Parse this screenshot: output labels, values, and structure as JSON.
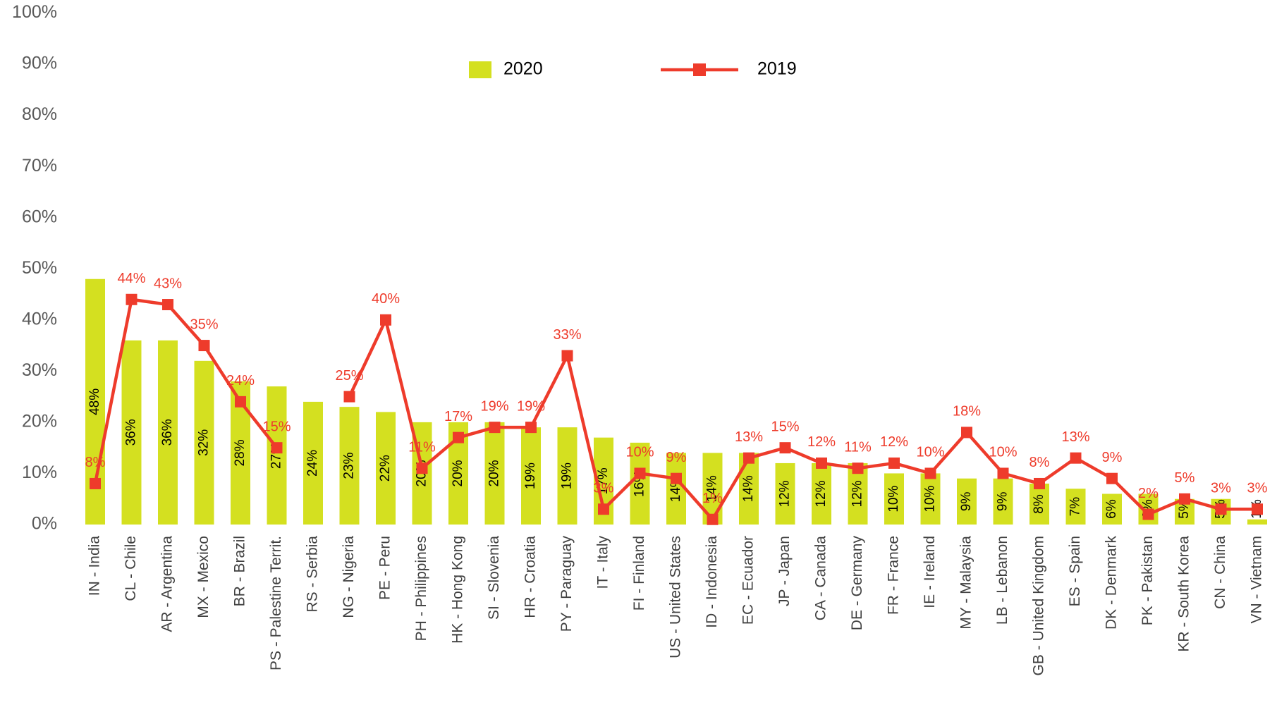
{
  "chart_data": {
    "type": "bar_line",
    "categories": [
      "IN - India",
      "CL - Chile",
      "AR - Argentina",
      "MX - Mexico",
      "BR - Brazil",
      "PS - Palestine Territ.",
      "RS - Serbia",
      "NG - Nigeria",
      "PE - Peru",
      "PH - Philippines",
      "HK - Hong Kong",
      "SI - Slovenia",
      "HR - Croatia",
      "PY - Paraguay",
      "IT - Italy",
      "FI - Finland",
      "US - United States",
      "ID - Indonesia",
      "EC - Ecuador",
      "JP - Japan",
      "CA - Canada",
      "DE - Germany",
      "FR - France",
      "IE - Ireland",
      "MY - Malaysia",
      "LB - Lebanon",
      "GB - United Kingdom",
      "ES - Spain",
      "DK - Denmark",
      "PK - Pakistan",
      "KR - South Korea",
      "CN - China",
      "VN - Vietnam"
    ],
    "series": [
      {
        "name": "2020",
        "type": "bar",
        "color": "#d4e020",
        "values": [
          48,
          36,
          36,
          32,
          28,
          27,
          24,
          23,
          22,
          20,
          20,
          20,
          19,
          19,
          17,
          16,
          14,
          14,
          14,
          12,
          12,
          12,
          10,
          10,
          9,
          9,
          8,
          7,
          6,
          6,
          5,
          5,
          1
        ],
        "value_labels": [
          "48%",
          "36%",
          "36%",
          "32%",
          "28%",
          "27%",
          "24%",
          "23%",
          "22%",
          "20%",
          "20%",
          "20%",
          "19%",
          "19%",
          "17%",
          "16%",
          "14%",
          "14%",
          "14%",
          "12%",
          "12%",
          "12%",
          "10%",
          "10%",
          "9%",
          "9%",
          "8%",
          "7%",
          "6%",
          "6%",
          "5%",
          "5%",
          "1%"
        ]
      },
      {
        "name": "2019",
        "type": "line",
        "color": "#ee3b2b",
        "values": [
          8,
          44,
          43,
          35,
          24,
          15,
          null,
          25,
          40,
          11,
          17,
          19,
          19,
          33,
          3,
          10,
          9,
          1,
          13,
          15,
          12,
          11,
          12,
          10,
          18,
          10,
          8,
          13,
          9,
          2,
          5,
          3,
          3
        ],
        "value_labels": [
          "8%",
          "44%",
          "43%",
          "35%",
          "24%",
          "15%",
          null,
          "25%",
          "40%",
          "11%",
          "17%",
          "19%",
          "19%",
          "33%",
          "3%",
          "10%",
          "9%",
          "1%",
          "13%",
          "15%",
          "12%",
          "11%",
          "12%",
          "10%",
          "18%",
          "10%",
          "8%",
          "13%",
          "9%",
          "2%",
          "5%",
          "3%",
          "3%"
        ]
      }
    ],
    "ylim": [
      0,
      100
    ],
    "yticks": [
      {
        "value": 0,
        "label": "0%"
      },
      {
        "value": 10,
        "label": "10%"
      },
      {
        "value": 20,
        "label": "20%"
      },
      {
        "value": 30,
        "label": "30%"
      },
      {
        "value": 40,
        "label": "40%"
      },
      {
        "value": 50,
        "label": "50%"
      },
      {
        "value": 60,
        "label": "60%"
      },
      {
        "value": 70,
        "label": "70%"
      },
      {
        "value": 80,
        "label": "80%"
      },
      {
        "value": 90,
        "label": "90%"
      },
      {
        "value": 100,
        "label": "100%"
      }
    ],
    "legend": "top"
  }
}
